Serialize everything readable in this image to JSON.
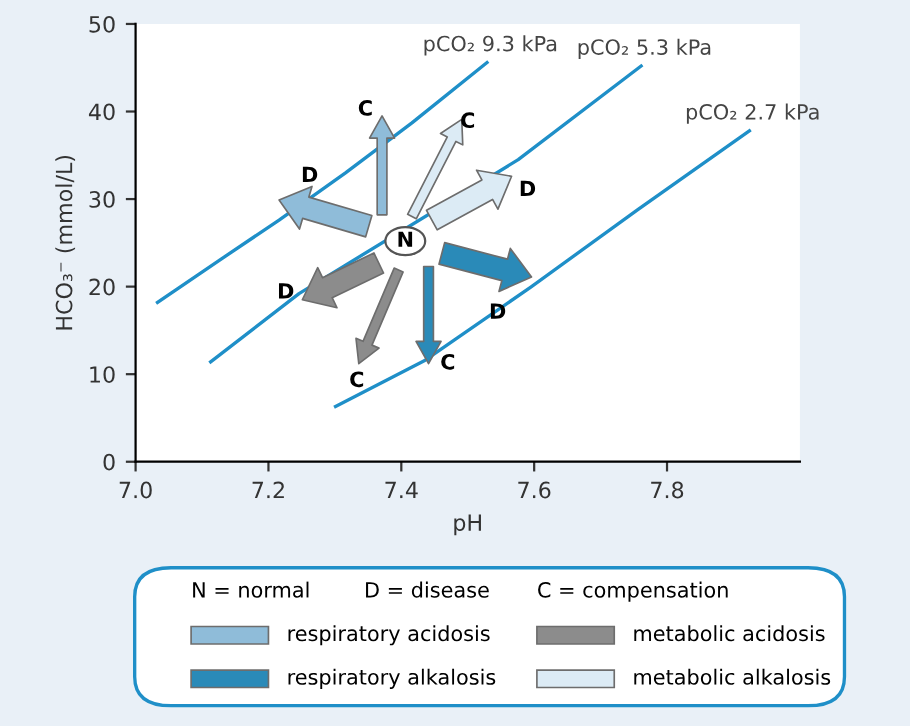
{
  "chart_data": {
    "type": "line",
    "xlabel": "pH",
    "ylabel": "HCO₃⁻ (mmol/L)",
    "xlim": [
      7.0,
      8.0
    ],
    "ylim": [
      0,
      50
    ],
    "xticks": [
      {
        "value": 7.0,
        "label": "7.0"
      },
      7.2,
      7.4,
      7.6,
      7.8
    ],
    "yticks": [
      0,
      10,
      20,
      30,
      40,
      50
    ],
    "grid": false,
    "series": [
      {
        "name": "pCO₂ 9.3 kPa",
        "color": "#1f8fc8",
        "x": [
          7.033,
          7.126,
          7.216,
          7.316,
          7.416,
          7.529
        ],
        "values": [
          18.2,
          23.0,
          27.6,
          33.0,
          38.7,
          45.6
        ]
      },
      {
        "name": "pCO₂ 5.3 kPa",
        "color": "#1f8fc8",
        "x": [
          7.113,
          7.246,
          7.576,
          7.761
        ],
        "values": [
          11.4,
          19.2,
          34.5,
          45.2
        ]
      },
      {
        "name": "pCO₂ 2.7 kPa",
        "color": "#1f8fc8",
        "x": [
          7.301,
          7.436,
          7.596,
          7.756,
          7.924
        ],
        "values": [
          6.3,
          11.6,
          20.0,
          28.8,
          37.8
        ]
      }
    ],
    "annotations": [
      "N = normal",
      "D = disease",
      "C = compensation",
      "respiratory acidosis",
      "metabolic acidosis",
      "respiratory alkalosis",
      "metabolic alkalosis",
      "N",
      "D",
      "C",
      "D",
      "C",
      "D",
      "C",
      "D",
      "C"
    ]
  }
}
